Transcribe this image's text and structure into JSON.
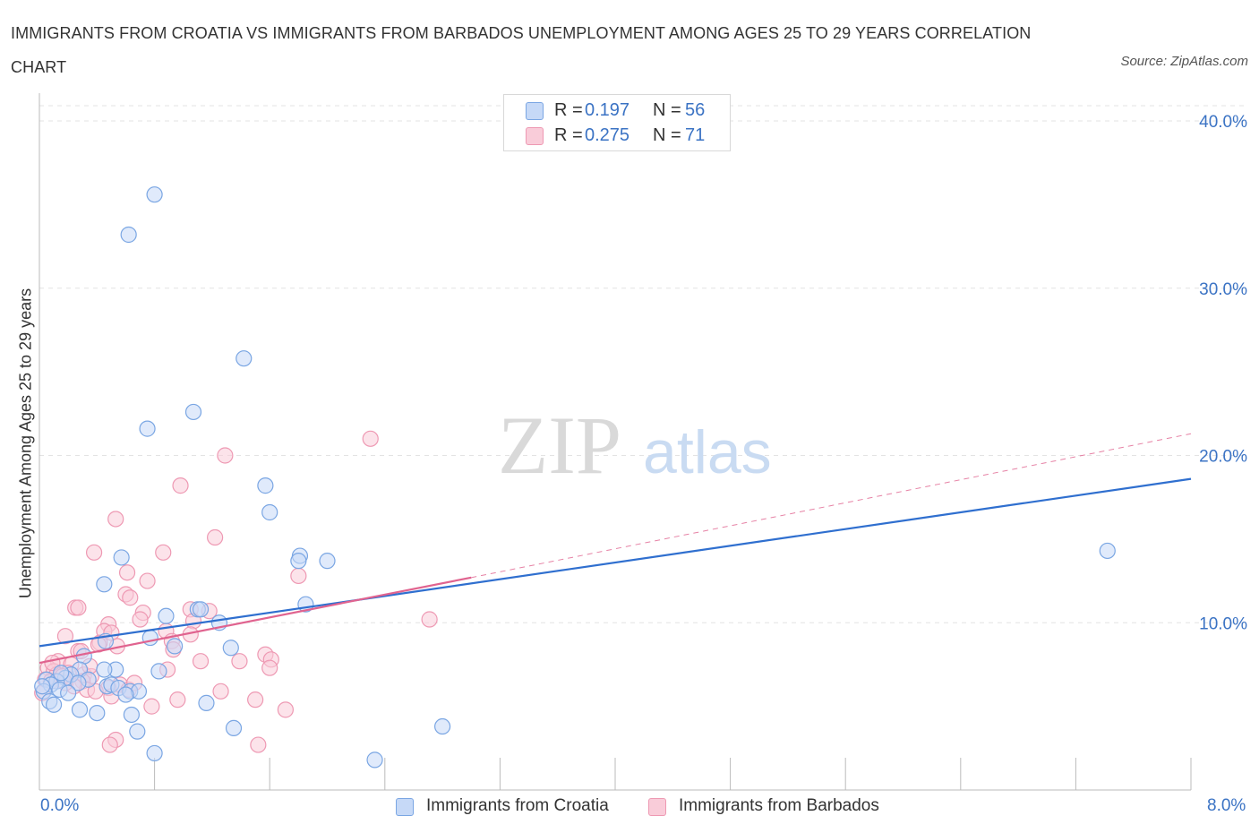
{
  "title": "IMMIGRANTS FROM CROATIA VS IMMIGRANTS FROM BARBADOS UNEMPLOYMENT AMONG AGES 25 TO 29 YEARS CORRELATION CHART",
  "source": "Source: ZipAtlas.com",
  "watermark": {
    "zip": "ZIP",
    "atlas": "atlas"
  },
  "legend_top": {
    "r_label": "R =",
    "n_label": "N =",
    "croatia": {
      "r": "0.197",
      "n": "56"
    },
    "barbados": {
      "r": "0.275",
      "n": "71"
    }
  },
  "colors": {
    "croatia_fill": "#c6d9f7",
    "croatia_stroke": "#7aa6e3",
    "croatia_line": "#2f6fcf",
    "barbados_fill": "#f9ccd9",
    "barbados_stroke": "#ee99b3",
    "barbados_line": "#e0638f",
    "axis_text": "#3b73c4"
  },
  "chart_data": {
    "type": "scatter",
    "title": "IMMIGRANTS FROM CROATIA VS IMMIGRANTS FROM BARBADOS UNEMPLOYMENT AMONG AGES 25 TO 29 YEARS CORRELATION CHART",
    "xlabel": "",
    "ylabel": "Unemployment Among Ages 25 to 29 years",
    "xlim": [
      0,
      8
    ],
    "ylim": [
      0,
      40
    ],
    "x_tick_labels": [
      "0.0%",
      "8.0%"
    ],
    "y_ticks": [
      10,
      20,
      30,
      40
    ],
    "y_tick_labels": [
      "10.0%",
      "20.0%",
      "30.0%",
      "40.0%"
    ],
    "series": [
      {
        "name": "Immigrants from Croatia",
        "r": 0.197,
        "n": 56,
        "trend": {
          "x": [
            0,
            8
          ],
          "y": [
            8.6,
            18.6
          ]
        },
        "points": [
          [
            0.8,
            35.6
          ],
          [
            0.62,
            33.2
          ],
          [
            1.42,
            25.8
          ],
          [
            1.07,
            22.6
          ],
          [
            0.75,
            21.6
          ],
          [
            1.57,
            18.2
          ],
          [
            1.6,
            16.6
          ],
          [
            7.42,
            14.3
          ],
          [
            1.81,
            14.0
          ],
          [
            0.57,
            13.9
          ],
          [
            1.8,
            13.7
          ],
          [
            2.0,
            13.7
          ],
          [
            0.45,
            12.3
          ],
          [
            1.85,
            11.1
          ],
          [
            1.1,
            10.8
          ],
          [
            1.12,
            10.8
          ],
          [
            0.88,
            10.4
          ],
          [
            1.25,
            10.0
          ],
          [
            0.77,
            9.1
          ],
          [
            0.46,
            8.9
          ],
          [
            0.94,
            8.6
          ],
          [
            1.33,
            8.5
          ],
          [
            0.31,
            8.0
          ],
          [
            0.28,
            7.2
          ],
          [
            0.53,
            7.2
          ],
          [
            0.45,
            7.2
          ],
          [
            0.83,
            7.1
          ],
          [
            0.22,
            6.9
          ],
          [
            0.18,
            6.7
          ],
          [
            0.05,
            6.6
          ],
          [
            0.12,
            6.5
          ],
          [
            0.34,
            6.6
          ],
          [
            0.27,
            6.4
          ],
          [
            0.08,
            6.3
          ],
          [
            0.47,
            6.2
          ],
          [
            0.5,
            6.3
          ],
          [
            0.55,
            6.1
          ],
          [
            0.14,
            6.0
          ],
          [
            0.03,
            5.9
          ],
          [
            0.63,
            5.9
          ],
          [
            0.69,
            5.9
          ],
          [
            0.6,
            5.7
          ],
          [
            0.07,
            5.3
          ],
          [
            0.1,
            5.1
          ],
          [
            1.16,
            5.2
          ],
          [
            0.28,
            4.8
          ],
          [
            0.4,
            4.6
          ],
          [
            0.64,
            4.5
          ],
          [
            1.35,
            3.7
          ],
          [
            2.8,
            3.8
          ],
          [
            0.68,
            3.5
          ],
          [
            0.8,
            2.2
          ],
          [
            2.33,
            1.8
          ],
          [
            0.15,
            7.0
          ],
          [
            0.02,
            6.2
          ],
          [
            0.2,
            5.8
          ]
        ]
      },
      {
        "name": "Immigrants from Barbados",
        "r": 0.275,
        "n": 71,
        "trend": {
          "x": [
            0,
            3.0
          ],
          "y": [
            7.6,
            12.7
          ]
        },
        "trend_extended": {
          "x": [
            3.0,
            8.0
          ],
          "y": [
            12.7,
            21.3
          ]
        },
        "points": [
          [
            2.3,
            21.0
          ],
          [
            1.29,
            20.0
          ],
          [
            0.98,
            18.2
          ],
          [
            0.53,
            16.2
          ],
          [
            1.22,
            15.1
          ],
          [
            0.38,
            14.2
          ],
          [
            0.86,
            14.2
          ],
          [
            0.61,
            13.0
          ],
          [
            0.75,
            12.5
          ],
          [
            1.8,
            12.8
          ],
          [
            0.6,
            11.7
          ],
          [
            0.63,
            11.5
          ],
          [
            0.25,
            10.9
          ],
          [
            0.27,
            10.9
          ],
          [
            0.72,
            10.6
          ],
          [
            1.05,
            10.8
          ],
          [
            1.18,
            10.7
          ],
          [
            2.71,
            10.2
          ],
          [
            1.07,
            10.1
          ],
          [
            0.48,
            9.9
          ],
          [
            0.18,
            9.2
          ],
          [
            0.45,
            9.5
          ],
          [
            0.5,
            9.4
          ],
          [
            0.88,
            9.5
          ],
          [
            0.92,
            8.9
          ],
          [
            0.54,
            8.6
          ],
          [
            0.93,
            8.4
          ],
          [
            0.42,
            8.8
          ],
          [
            0.27,
            8.3
          ],
          [
            0.29,
            8.3
          ],
          [
            1.57,
            8.1
          ],
          [
            1.61,
            7.8
          ],
          [
            0.13,
            7.7
          ],
          [
            0.22,
            7.5
          ],
          [
            1.12,
            7.7
          ],
          [
            1.39,
            7.7
          ],
          [
            0.06,
            7.3
          ],
          [
            0.1,
            7.1
          ],
          [
            0.2,
            7.0
          ],
          [
            0.89,
            7.2
          ],
          [
            1.6,
            7.3
          ],
          [
            0.12,
            6.9
          ],
          [
            0.31,
            6.9
          ],
          [
            0.36,
            6.8
          ],
          [
            0.04,
            6.6
          ],
          [
            0.08,
            6.5
          ],
          [
            0.3,
            6.5
          ],
          [
            0.56,
            6.3
          ],
          [
            0.48,
            6.1
          ],
          [
            0.33,
            6.0
          ],
          [
            0.39,
            5.9
          ],
          [
            0.62,
            6.0
          ],
          [
            1.26,
            5.9
          ],
          [
            0.02,
            5.8
          ],
          [
            0.5,
            5.6
          ],
          [
            0.96,
            5.4
          ],
          [
            1.5,
            5.4
          ],
          [
            0.78,
            5.0
          ],
          [
            1.71,
            4.8
          ],
          [
            0.53,
            3.0
          ],
          [
            0.49,
            2.7
          ],
          [
            1.52,
            2.7
          ],
          [
            0.16,
            6.8
          ],
          [
            0.24,
            6.2
          ],
          [
            0.09,
            7.6
          ],
          [
            0.41,
            8.7
          ],
          [
            0.66,
            6.4
          ],
          [
            1.05,
            9.3
          ],
          [
            0.7,
            10.2
          ],
          [
            0.35,
            7.4
          ],
          [
            0.18,
            6.4
          ]
        ]
      }
    ]
  }
}
